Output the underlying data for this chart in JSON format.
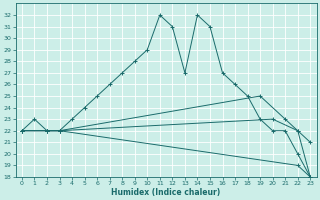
{
  "xlabel": "Humidex (Indice chaleur)",
  "bg_color": "#cceee8",
  "grid_color": "#aadddd",
  "line_color": "#1a6b6b",
  "xlim": [
    -0.5,
    23.5
  ],
  "ylim": [
    18,
    33
  ],
  "xticks": [
    0,
    1,
    2,
    3,
    4,
    5,
    6,
    7,
    8,
    9,
    10,
    11,
    12,
    13,
    14,
    15,
    16,
    17,
    18,
    19,
    20,
    21,
    22,
    23
  ],
  "yticks": [
    18,
    19,
    20,
    21,
    22,
    23,
    24,
    25,
    26,
    27,
    28,
    29,
    30,
    31,
    32
  ],
  "series": [
    {
      "x": [
        0,
        1,
        2,
        3,
        4,
        5,
        6,
        7,
        8,
        9,
        10,
        11,
        12,
        13,
        14,
        15,
        16,
        17,
        18,
        19,
        20,
        21,
        22,
        23
      ],
      "y": [
        22,
        23,
        22,
        22,
        23,
        24,
        25,
        26,
        27,
        28,
        29,
        32,
        31,
        27,
        32,
        31,
        27,
        26,
        25,
        23,
        22,
        22,
        20,
        18
      ]
    },
    {
      "x": [
        0,
        2,
        3,
        22,
        23
      ],
      "y": [
        22,
        22,
        22,
        19,
        18
      ]
    },
    {
      "x": [
        0,
        2,
        3,
        20,
        22,
        23
      ],
      "y": [
        22,
        22,
        22,
        23,
        22,
        21
      ]
    },
    {
      "x": [
        0,
        2,
        3,
        19,
        21,
        22,
        23
      ],
      "y": [
        22,
        22,
        22,
        25,
        23,
        22,
        18
      ]
    }
  ]
}
